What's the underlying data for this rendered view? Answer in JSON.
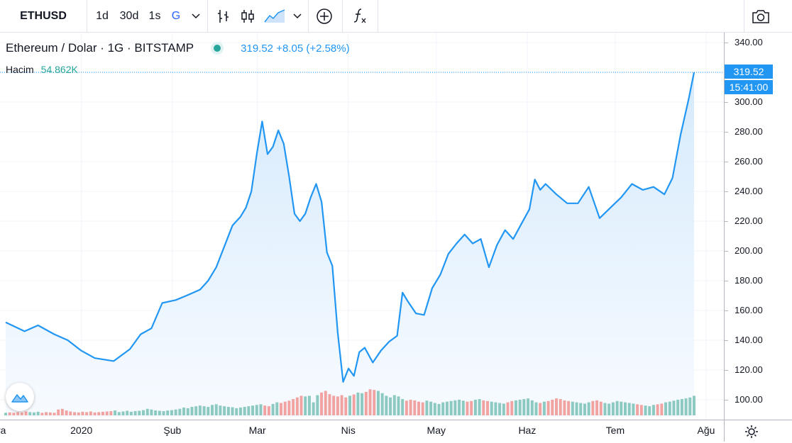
{
  "toolbar": {
    "symbol": "ETHUSD",
    "intervals": [
      "1d",
      "30d",
      "1s",
      "G"
    ],
    "active_interval": "G",
    "icons": [
      "chevron-down-icon",
      "bar-chart-icon",
      "candlestick-icon",
      "area-chart-icon",
      "chevron-down-icon",
      "add-compare-icon",
      "indicators-icon",
      "camera-icon"
    ]
  },
  "legend": {
    "title": "Ethereum / Dolar · 1G · BITSTAMP",
    "last": "319.52",
    "change": "+8.05 (+2.58%)"
  },
  "volume_legend": {
    "label": "Hacim",
    "value": "54.862K"
  },
  "badges": {
    "price": "319.52",
    "countdown": "15:41:00"
  },
  "colors": {
    "line": "#2196f3",
    "area_top": "#d6eafc",
    "area_bottom": "#f7fbff",
    "vol_up": "#8cc9c0",
    "vol_down": "#f1a3a2",
    "accent": "#2962ff",
    "status_dot": "#26a69a"
  },
  "chart_data": {
    "type": "area",
    "y_ticks": [
      "340.00",
      "320.00",
      "300.00",
      "280.00",
      "260.00",
      "240.00",
      "220.00",
      "200.00",
      "180.00",
      "160.00",
      "140.00",
      "120.00",
      "100.00"
    ],
    "ylim": [
      95,
      345
    ],
    "x_ticks": [
      "ra",
      "2020",
      "Şub",
      "Mar",
      "Nis",
      "May",
      "Haz",
      "Tem",
      "Ağu"
    ],
    "x_tick_days": [
      0,
      28,
      59,
      88,
      119,
      149,
      180,
      210,
      241
    ],
    "series": [
      {
        "values": [
          [
            0,
            152
          ],
          [
            7,
            146
          ],
          [
            12,
            150
          ],
          [
            18,
            144
          ],
          [
            23,
            140
          ],
          [
            28,
            133
          ],
          [
            33,
            128
          ],
          [
            40,
            126
          ],
          [
            46,
            134
          ],
          [
            50,
            144
          ],
          [
            54,
            148
          ],
          [
            58,
            165
          ],
          [
            63,
            167
          ],
          [
            67,
            170
          ],
          [
            72,
            174
          ],
          [
            75,
            180
          ],
          [
            78,
            189
          ],
          [
            81,
            203
          ],
          [
            84,
            217
          ],
          [
            87,
            223
          ],
          [
            89,
            229
          ],
          [
            91,
            240
          ],
          [
            93,
            265
          ],
          [
            95,
            287
          ],
          [
            97,
            265
          ],
          [
            99,
            270
          ],
          [
            101,
            281
          ],
          [
            103,
            272
          ],
          [
            105,
            250
          ],
          [
            107,
            225
          ],
          [
            109,
            220
          ],
          [
            111,
            225
          ],
          [
            113,
            236
          ],
          [
            115,
            245
          ],
          [
            117,
            233
          ],
          [
            119,
            199
          ],
          [
            121,
            190
          ],
          [
            123,
            145
          ],
          [
            125,
            112
          ],
          [
            127,
            121
          ],
          [
            129,
            116
          ],
          [
            131,
            132
          ],
          [
            133,
            135
          ],
          [
            136,
            125
          ],
          [
            139,
            133
          ],
          [
            142,
            139
          ],
          [
            145,
            143
          ],
          [
            147,
            172
          ],
          [
            149,
            166
          ],
          [
            152,
            158
          ],
          [
            155,
            157
          ],
          [
            158,
            175
          ],
          [
            161,
            184
          ],
          [
            164,
            198
          ],
          [
            167,
            205
          ],
          [
            170,
            211
          ],
          [
            173,
            205
          ],
          [
            176,
            208
          ],
          [
            179,
            189
          ],
          [
            182,
            204
          ],
          [
            185,
            214
          ],
          [
            188,
            208
          ],
          [
            191,
            218
          ],
          [
            194,
            228
          ],
          [
            196,
            248
          ],
          [
            198,
            241
          ],
          [
            200,
            245
          ],
          [
            204,
            238
          ],
          [
            208,
            232
          ],
          [
            212,
            232
          ],
          [
            216,
            243
          ],
          [
            220,
            222
          ],
          [
            224,
            229
          ],
          [
            228,
            236
          ],
          [
            232,
            245
          ],
          [
            236,
            241
          ],
          [
            240,
            243
          ],
          [
            244,
            238
          ],
          [
            247,
            249
          ],
          [
            250,
            278
          ],
          [
            253,
            302
          ],
          [
            255,
            320
          ]
        ]
      }
    ],
    "volume_scale_max": 100,
    "volume": [
      8,
      9,
      8,
      10,
      9,
      12,
      10,
      9,
      11,
      8,
      10,
      9,
      8,
      18,
      20,
      15,
      12,
      10,
      9,
      11,
      10,
      12,
      9,
      10,
      11,
      12,
      13,
      15,
      10,
      12,
      14,
      11,
      13,
      14,
      16,
      20,
      18,
      15,
      14,
      13,
      15,
      16,
      18,
      20,
      24,
      22,
      26,
      28,
      30,
      28,
      26,
      32,
      34,
      30,
      28,
      26,
      25,
      22,
      24,
      26,
      28,
      30,
      32,
      34,
      30,
      28,
      35,
      40,
      38,
      42,
      45,
      50,
      55,
      60,
      58,
      60,
      40,
      62,
      70,
      75,
      65,
      60,
      58,
      62,
      55,
      60,
      64,
      70,
      68,
      72,
      80,
      78,
      75,
      68,
      60,
      55,
      62,
      58,
      50,
      45,
      48,
      46,
      42,
      40,
      45,
      42,
      38,
      35,
      40,
      42,
      44,
      46,
      48,
      45,
      42,
      44,
      48,
      50,
      46,
      44,
      42,
      40,
      38,
      36,
      40,
      44,
      46,
      48,
      50,
      52,
      46,
      40,
      38,
      42,
      44,
      48,
      52,
      50,
      46,
      44,
      42,
      40,
      38,
      36,
      40,
      44,
      46,
      42,
      38,
      36,
      40,
      44,
      42,
      40,
      38,
      36,
      34,
      32,
      30,
      28,
      32,
      34,
      36,
      40,
      42,
      45,
      48,
      50,
      52,
      55,
      60
    ]
  }
}
